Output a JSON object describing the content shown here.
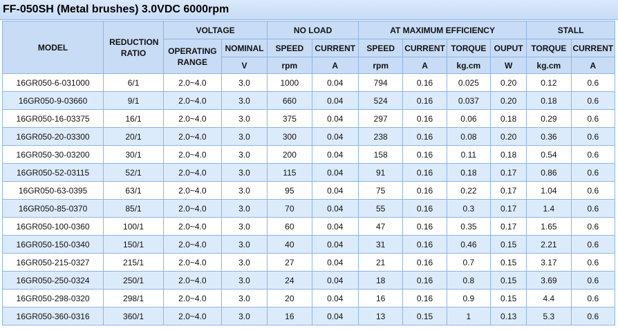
{
  "title": "FF-050SH (Metal brushes)  3.0VDC 6000rpm",
  "headers": {
    "model": "MODEL",
    "reduction_ratio": "REDUCTION RATIO",
    "voltage": "VOLTAGE",
    "no_load": "NO LOAD",
    "max_eff": "AT MAXIMUM EFFICIENCY",
    "stall": "STALL",
    "operating_range": "OPERATING RANGE",
    "nominal": "NOMINAL",
    "speed": "SPEED",
    "current": "CURRENT",
    "torque": "TORQUE",
    "output": "OUPUT",
    "units": {
      "nominal": "V",
      "nl_speed": "rpm",
      "nl_current": "A",
      "me_speed": "rpm",
      "me_current": "A",
      "me_torque": "kg.cm",
      "me_output": "W",
      "st_torque": "kg.cm",
      "st_current": "A"
    }
  },
  "rows": [
    [
      "16GR050-6-031000",
      "6/1",
      "2.0~4.0",
      "3.0",
      "1000",
      "0.04",
      "794",
      "0.16",
      "0.025",
      "0.20",
      "0.12",
      "0.6"
    ],
    [
      "16GR050-9-03660",
      "9/1",
      "2.0~4.0",
      "3.0",
      "660",
      "0.04",
      "524",
      "0.16",
      "0.037",
      "0.20",
      "0.18",
      "0.6"
    ],
    [
      "16GR050-16-03375",
      "16/1",
      "2.0~4.0",
      "3.0",
      "375",
      "0.04",
      "297",
      "0.16",
      "0.06",
      "0.18",
      "0.29",
      "0.6"
    ],
    [
      "16GR050-20-03300",
      "20/1",
      "2.0~4.0",
      "3.0",
      "300",
      "0.04",
      "238",
      "0.16",
      "0.08",
      "0.20",
      "0.36",
      "0.6"
    ],
    [
      "16GR050-30-03200",
      "30/1",
      "2.0~4.0",
      "3.0",
      "200",
      "0.04",
      "158",
      "0.16",
      "0.11",
      "0.18",
      "0.54",
      "0.6"
    ],
    [
      "16GR050-52-03115",
      "52/1",
      "2.0~4.0",
      "3.0",
      "115",
      "0.04",
      "91",
      "0.16",
      "0.18",
      "0.17",
      "0.86",
      "0.6"
    ],
    [
      "16GR050-63-0395",
      "63/1",
      "2.0~4.0",
      "3.0",
      "95",
      "0.04",
      "75",
      "0.16",
      "0.22",
      "0.17",
      "1.04",
      "0.6"
    ],
    [
      "16GR050-85-0370",
      "85/1",
      "2.0~4.0",
      "3.0",
      "70",
      "0.04",
      "55",
      "0.16",
      "0.3",
      "0.17",
      "1.4",
      "0.6"
    ],
    [
      "16GR050-100-0360",
      "100/1",
      "2.0~4.0",
      "3.0",
      "60",
      "0.04",
      "47",
      "0.16",
      "0.35",
      "0.17",
      "1.65",
      "0.6"
    ],
    [
      "16GR050-150-0340",
      "150/1",
      "2.0~4.0",
      "3.0",
      "40",
      "0.04",
      "31",
      "0.16",
      "0.46",
      "0.15",
      "2.21",
      "0.6"
    ],
    [
      "16GR050-215-0327",
      "215/1",
      "2.0~4.0",
      "3.0",
      "27",
      "0.04",
      "21",
      "0.16",
      "0.7",
      "0.15",
      "3.17",
      "0.6"
    ],
    [
      "16GR050-250-0324",
      "250/1",
      "2.0~4.0",
      "3.0",
      "24",
      "0.04",
      "18",
      "0.16",
      "0.8",
      "0.15",
      "3.69",
      "0.6"
    ],
    [
      "16GR050-298-0320",
      "298/1",
      "2.0~4.0",
      "3.0",
      "20",
      "0.04",
      "16",
      "0.16",
      "0.9",
      "0.15",
      "4.4",
      "0.6"
    ],
    [
      "16GR050-360-0316",
      "360/1",
      "2.0~4.0",
      "3.0",
      "16",
      "0.04",
      "13",
      "0.15",
      "1",
      "0.13",
      "5.3",
      "0.6"
    ]
  ]
}
